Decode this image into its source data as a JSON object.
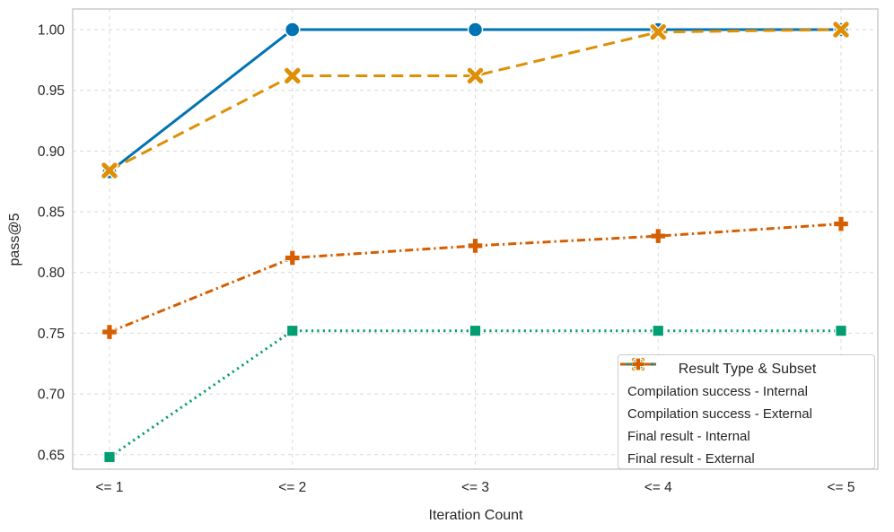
{
  "chart_data": {
    "type": "line",
    "title": "",
    "xlabel": "Iteration Count",
    "ylabel": "pass@5",
    "categories": [
      "<= 1",
      "<= 2",
      "<= 3",
      "<= 4",
      "<= 5"
    ],
    "y_ticks": [
      "1.00",
      "0.95",
      "0.90",
      "0.85",
      "0.80",
      "0.75",
      "0.70",
      "0.65"
    ],
    "y_tick_values": [
      1.0,
      0.95,
      0.9,
      0.85,
      0.8,
      0.75,
      0.7,
      0.65
    ],
    "ylim": [
      0.638,
      1.017
    ],
    "grid": "both-dashed",
    "legend": {
      "title": "Result Type & Subset",
      "position": "lower right"
    },
    "series": [
      {
        "name": "Compilation success - Internal",
        "values": [
          0.883,
          1.0,
          1.0,
          1.0,
          1.0
        ],
        "color": "#0173b2",
        "line_style": "solid",
        "marker": "circle"
      },
      {
        "name": "Compilation success - External",
        "values": [
          0.884,
          0.962,
          0.962,
          0.998,
          1.0
        ],
        "color": "#de8f05",
        "line_style": "dashed",
        "marker": "x"
      },
      {
        "name": "Final result - Internal",
        "values": [
          0.648,
          0.752,
          0.752,
          0.752,
          0.752
        ],
        "color": "#029e73",
        "line_style": "dotted",
        "marker": "square"
      },
      {
        "name": "Final result - External",
        "values": [
          0.751,
          0.812,
          0.822,
          0.83,
          0.84
        ],
        "color": "#d55e00",
        "line_style": "dashdot",
        "marker": "plus"
      }
    ],
    "colors": {
      "grid": "#d9d9d9",
      "frame": "#c9c9c9",
      "text": "#262626",
      "background": "#ffffff"
    }
  }
}
